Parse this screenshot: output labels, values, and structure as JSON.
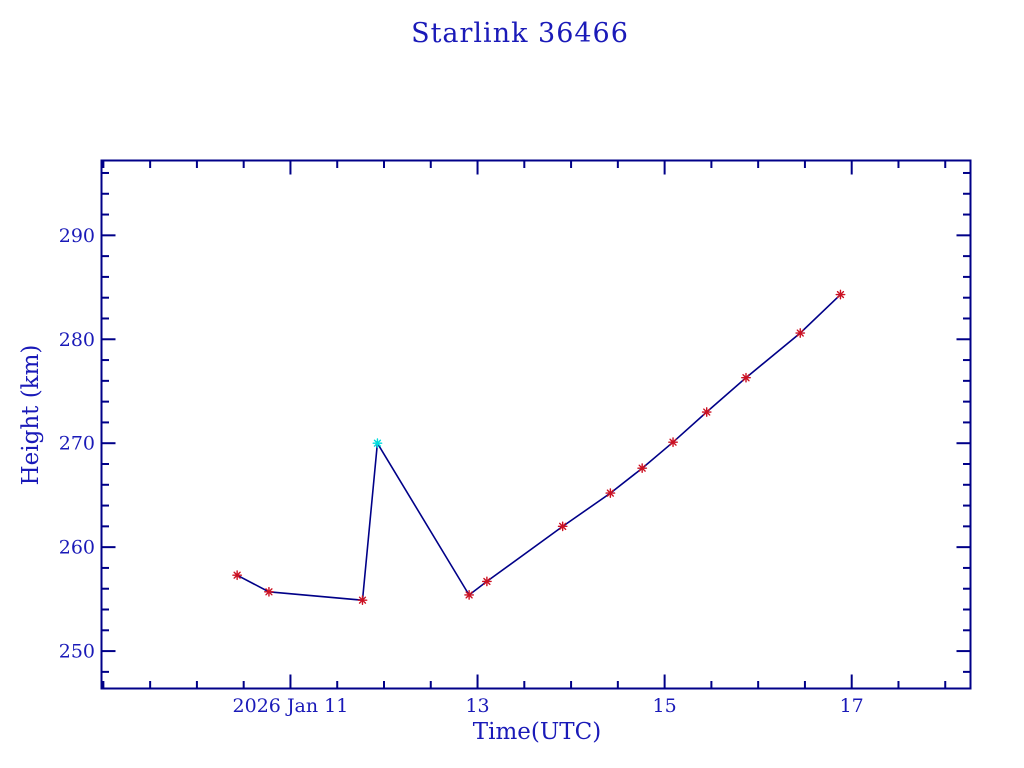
{
  "page": {
    "background": "#ffffff"
  },
  "chart_data": {
    "type": "line",
    "title": "Starlink 36466",
    "xlabel": "Time(UTC)",
    "ylabel": "Height (km)",
    "grid": false,
    "legend": null,
    "colors": {
      "text": "#1a1ab8",
      "axis": "#000088",
      "line": "#000088",
      "marker": "#cc1122",
      "highlight_marker": "#00dcdc",
      "background": "#ffffff"
    },
    "x_axis": {
      "unit": "day of January 2026, UTC",
      "min": 8.98,
      "max": 18.27,
      "major_ticks": [
        11,
        13,
        15,
        17
      ],
      "major_tick_labels": [
        "2026 Jan 11",
        "13",
        "15",
        "17"
      ],
      "minor_tick_step": 0.5,
      "minor_tick_start": 9.0,
      "minor_tick_end": 18.0
    },
    "y_axis": {
      "unit": "km",
      "min": 246.4,
      "max": 297.2,
      "major_ticks": [
        250,
        260,
        270,
        280,
        290
      ],
      "major_tick_labels": [
        "250",
        "260",
        "270",
        "280",
        "290"
      ],
      "minor_tick_step": 2,
      "minor_tick_start": 248,
      "minor_tick_end": 296
    },
    "series": [
      {
        "name": "height",
        "marker": "asterisk",
        "points": [
          {
            "x": 10.43,
            "y": 257.3
          },
          {
            "x": 10.77,
            "y": 255.7
          },
          {
            "x": 11.77,
            "y": 254.9
          },
          {
            "x": 11.93,
            "y": 270.0,
            "highlight": true
          },
          {
            "x": 12.91,
            "y": 255.4
          },
          {
            "x": 13.1,
            "y": 256.7
          },
          {
            "x": 13.91,
            "y": 262.0
          },
          {
            "x": 14.42,
            "y": 265.2
          },
          {
            "x": 14.76,
            "y": 267.6
          },
          {
            "x": 15.09,
            "y": 270.1
          },
          {
            "x": 15.45,
            "y": 273.0
          },
          {
            "x": 15.87,
            "y": 276.3
          },
          {
            "x": 16.45,
            "y": 280.6
          },
          {
            "x": 16.88,
            "y": 284.3
          }
        ]
      }
    ]
  }
}
